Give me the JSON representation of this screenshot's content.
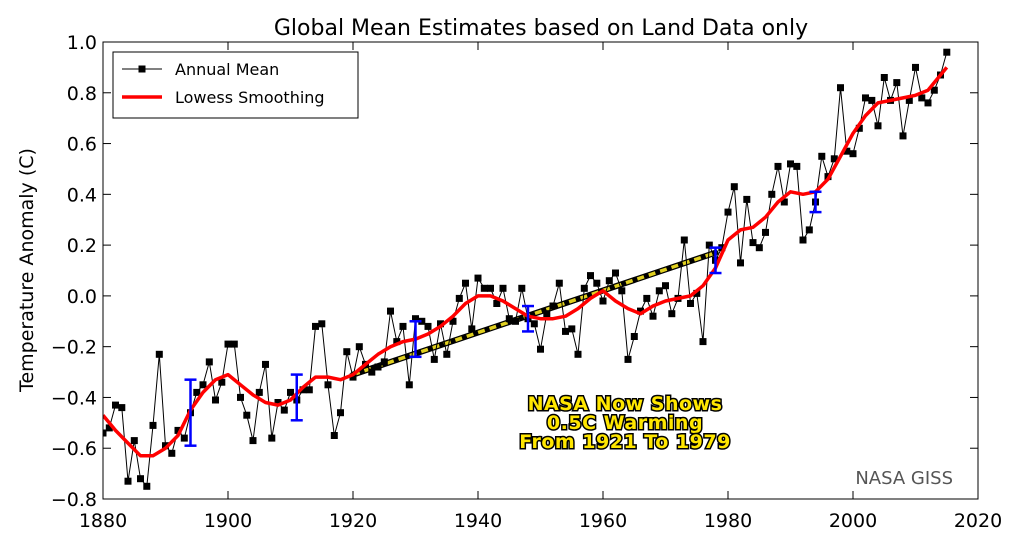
{
  "chart_data": {
    "type": "line",
    "title": "Global Mean Estimates based on Land Data only",
    "xlabel": "",
    "ylabel": "Temperature Anomaly (C)",
    "xlim": [
      1880,
      2020
    ],
    "ylim": [
      -0.8,
      1.0
    ],
    "xticks": [
      "1880",
      "1900",
      "1920",
      "1940",
      "1960",
      "1980",
      "2000",
      "2020"
    ],
    "yticks": [
      "−0.8",
      "−0.6",
      "−0.4",
      "−0.2",
      "0.0",
      "0.2",
      "0.4",
      "0.6",
      "0.8",
      "1.0"
    ],
    "grid": false,
    "legend_position": "top-left",
    "series": [
      {
        "name": "Annual Mean",
        "color": "#000000",
        "marker": "square",
        "x": [
          1880,
          1881,
          1882,
          1883,
          1884,
          1885,
          1886,
          1887,
          1888,
          1889,
          1890,
          1891,
          1892,
          1893,
          1894,
          1895,
          1896,
          1897,
          1898,
          1899,
          1900,
          1901,
          1902,
          1903,
          1904,
          1905,
          1906,
          1907,
          1908,
          1909,
          1910,
          1911,
          1912,
          1913,
          1914,
          1915,
          1916,
          1917,
          1918,
          1919,
          1920,
          1921,
          1922,
          1923,
          1924,
          1925,
          1926,
          1927,
          1928,
          1929,
          1930,
          1931,
          1932,
          1933,
          1934,
          1935,
          1936,
          1937,
          1938,
          1939,
          1940,
          1941,
          1942,
          1943,
          1944,
          1945,
          1946,
          1947,
          1948,
          1949,
          1950,
          1951,
          1952,
          1953,
          1954,
          1955,
          1956,
          1957,
          1958,
          1959,
          1960,
          1961,
          1962,
          1963,
          1964,
          1965,
          1966,
          1967,
          1968,
          1969,
          1970,
          1971,
          1972,
          1973,
          1974,
          1975,
          1976,
          1977,
          1978,
          1979,
          1980,
          1981,
          1982,
          1983,
          1984,
          1985,
          1986,
          1987,
          1988,
          1989,
          1990,
          1991,
          1992,
          1993,
          1994,
          1995,
          1996,
          1997,
          1998,
          1999,
          2000,
          2001,
          2002,
          2003,
          2004,
          2005,
          2006,
          2007,
          2008,
          2009,
          2010,
          2011,
          2012,
          2013,
          2014,
          2015
        ],
        "y": [
          -0.54,
          -0.52,
          -0.43,
          -0.44,
          -0.73,
          -0.57,
          -0.72,
          -0.75,
          -0.51,
          -0.23,
          -0.59,
          -0.62,
          -0.53,
          -0.56,
          -0.46,
          -0.38,
          -0.35,
          -0.26,
          -0.41,
          -0.34,
          -0.19,
          -0.19,
          -0.4,
          -0.47,
          -0.57,
          -0.38,
          -0.27,
          -0.56,
          -0.42,
          -0.45,
          -0.38,
          -0.41,
          -0.37,
          -0.37,
          -0.12,
          -0.11,
          -0.35,
          -0.55,
          -0.46,
          -0.22,
          -0.32,
          -0.2,
          -0.27,
          -0.3,
          -0.28,
          -0.26,
          -0.06,
          -0.18,
          -0.12,
          -0.35,
          -0.09,
          -0.1,
          -0.12,
          -0.25,
          -0.11,
          -0.23,
          -0.1,
          -0.01,
          0.05,
          -0.13,
          0.07,
          0.03,
          0.03,
          -0.03,
          0.03,
          -0.09,
          -0.1,
          0.03,
          -0.09,
          -0.11,
          -0.21,
          -0.07,
          -0.04,
          0.05,
          -0.14,
          -0.13,
          -0.23,
          0.03,
          0.08,
          0.05,
          -0.02,
          0.06,
          0.09,
          0.02,
          -0.25,
          -0.16,
          -0.06,
          -0.01,
          -0.08,
          0.02,
          0.04,
          -0.07,
          -0.01,
          0.22,
          -0.03,
          0.01,
          -0.18,
          0.2,
          0.14,
          0.19,
          0.33,
          0.43,
          0.13,
          0.38,
          0.21,
          0.19,
          0.25,
          0.4,
          0.51,
          0.37,
          0.52,
          0.51,
          0.22,
          0.26,
          0.37,
          0.55,
          0.47,
          0.54,
          0.82,
          0.57,
          0.56,
          0.66,
          0.78,
          0.77,
          0.67,
          0.86,
          0.77,
          0.84,
          0.63,
          0.77,
          0.9,
          0.78,
          0.76,
          0.81,
          0.87,
          0.96
        ]
      },
      {
        "name": "Lowess Smoothing",
        "color": "#ff0000",
        "x": [
          1880,
          1882,
          1884,
          1886,
          1888,
          1890,
          1892,
          1894,
          1896,
          1898,
          1900,
          1902,
          1904,
          1906,
          1908,
          1910,
          1912,
          1914,
          1916,
          1918,
          1920,
          1922,
          1924,
          1926,
          1928,
          1930,
          1932,
          1934,
          1936,
          1938,
          1940,
          1942,
          1944,
          1946,
          1948,
          1950,
          1952,
          1954,
          1956,
          1958,
          1960,
          1962,
          1964,
          1966,
          1968,
          1970,
          1972,
          1974,
          1976,
          1978,
          1980,
          1982,
          1984,
          1986,
          1988,
          1990,
          1992,
          1994,
          1996,
          1998,
          2000,
          2002,
          2004,
          2006,
          2008,
          2010,
          2012,
          2014,
          2015
        ],
        "y": [
          -0.47,
          -0.53,
          -0.58,
          -0.63,
          -0.63,
          -0.6,
          -0.55,
          -0.45,
          -0.38,
          -0.33,
          -0.31,
          -0.35,
          -0.39,
          -0.42,
          -0.43,
          -0.41,
          -0.36,
          -0.32,
          -0.32,
          -0.33,
          -0.31,
          -0.27,
          -0.23,
          -0.2,
          -0.18,
          -0.17,
          -0.15,
          -0.12,
          -0.08,
          -0.03,
          0.0,
          0.0,
          -0.02,
          -0.05,
          -0.08,
          -0.09,
          -0.09,
          -0.08,
          -0.05,
          -0.01,
          0.02,
          -0.02,
          -0.05,
          -0.07,
          -0.04,
          -0.02,
          -0.01,
          0.0,
          0.04,
          0.11,
          0.22,
          0.26,
          0.27,
          0.31,
          0.37,
          0.41,
          0.4,
          0.41,
          0.46,
          0.55,
          0.64,
          0.71,
          0.76,
          0.77,
          0.78,
          0.79,
          0.81,
          0.87,
          0.9
        ]
      },
      {
        "name": "",
        "color": "#e0d020",
        "style": "dashed",
        "x": [
          1920,
          1978
        ],
        "y": [
          -0.31,
          0.17
        ]
      }
    ],
    "error_bars": [
      {
        "x": 1894,
        "low": -0.59,
        "high": -0.33
      },
      {
        "x": 1911,
        "low": -0.49,
        "high": -0.31
      },
      {
        "x": 1930,
        "low": -0.24,
        "high": -0.1
      },
      {
        "x": 1948,
        "low": -0.14,
        "high": -0.04
      },
      {
        "x": 1978,
        "low": 0.09,
        "high": 0.19
      },
      {
        "x": 1994,
        "low": 0.33,
        "high": 0.41
      }
    ],
    "error_bar_color": "#0000ff",
    "annotation": {
      "lines": [
        "NASA Now Shows",
        "0.5C Warming",
        "From 1921 To 1979"
      ],
      "color": "#ffe600"
    },
    "credit": "NASA GISS"
  }
}
